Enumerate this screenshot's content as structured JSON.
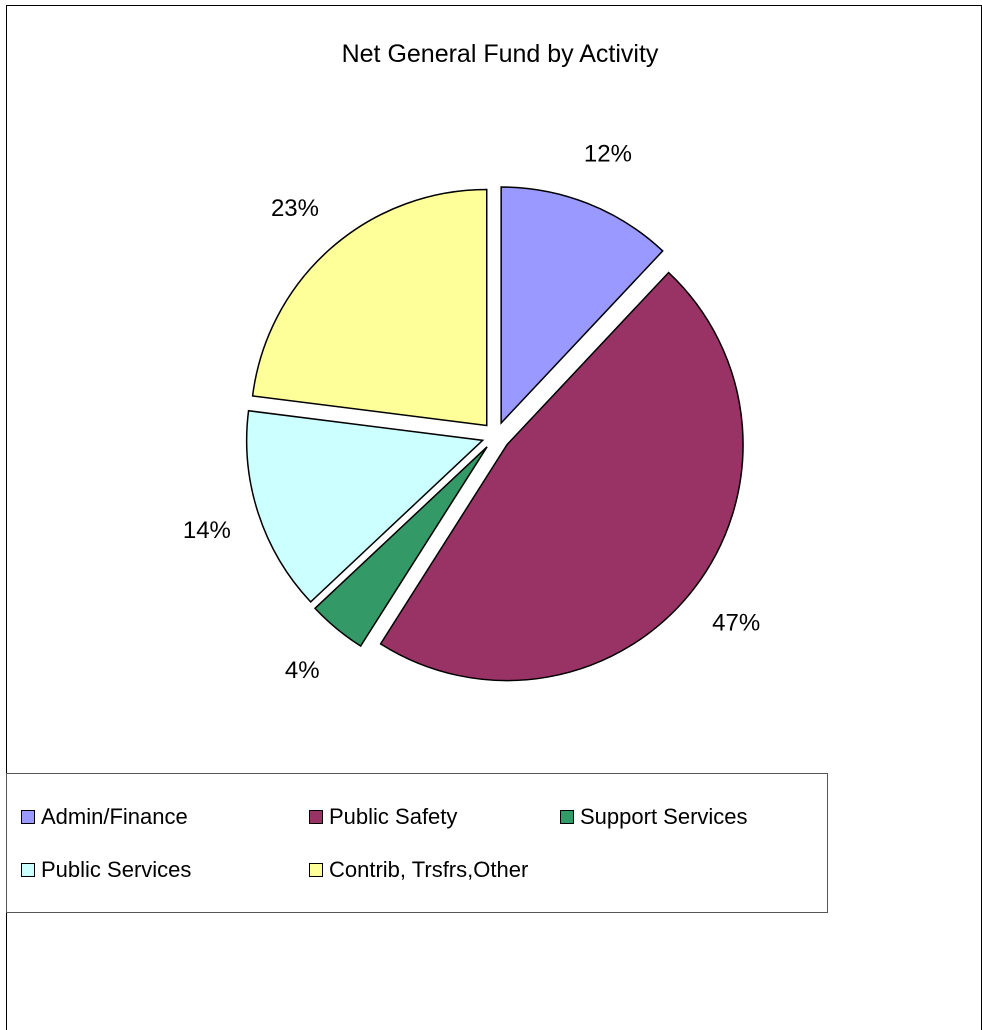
{
  "chart_data": {
    "type": "pie",
    "title": "Net General Fund by Activity",
    "series": [
      {
        "name": "Admin/Finance",
        "value": 12,
        "label": "12%",
        "color": "#9999ff"
      },
      {
        "name": "Public Safety",
        "value": 47,
        "label": "47%",
        "color": "#993366"
      },
      {
        "name": "Support Services",
        "value": 4,
        "label": "4%",
        "color": "#339966"
      },
      {
        "name": "Public Services",
        "value": 14,
        "label": "14%",
        "color": "#ccffff"
      },
      {
        "name": "Contrib, Trsfrs,Other",
        "value": 23,
        "label": "23%",
        "color": "#ffff99"
      }
    ],
    "exploded": true,
    "legend_position": "bottom"
  }
}
